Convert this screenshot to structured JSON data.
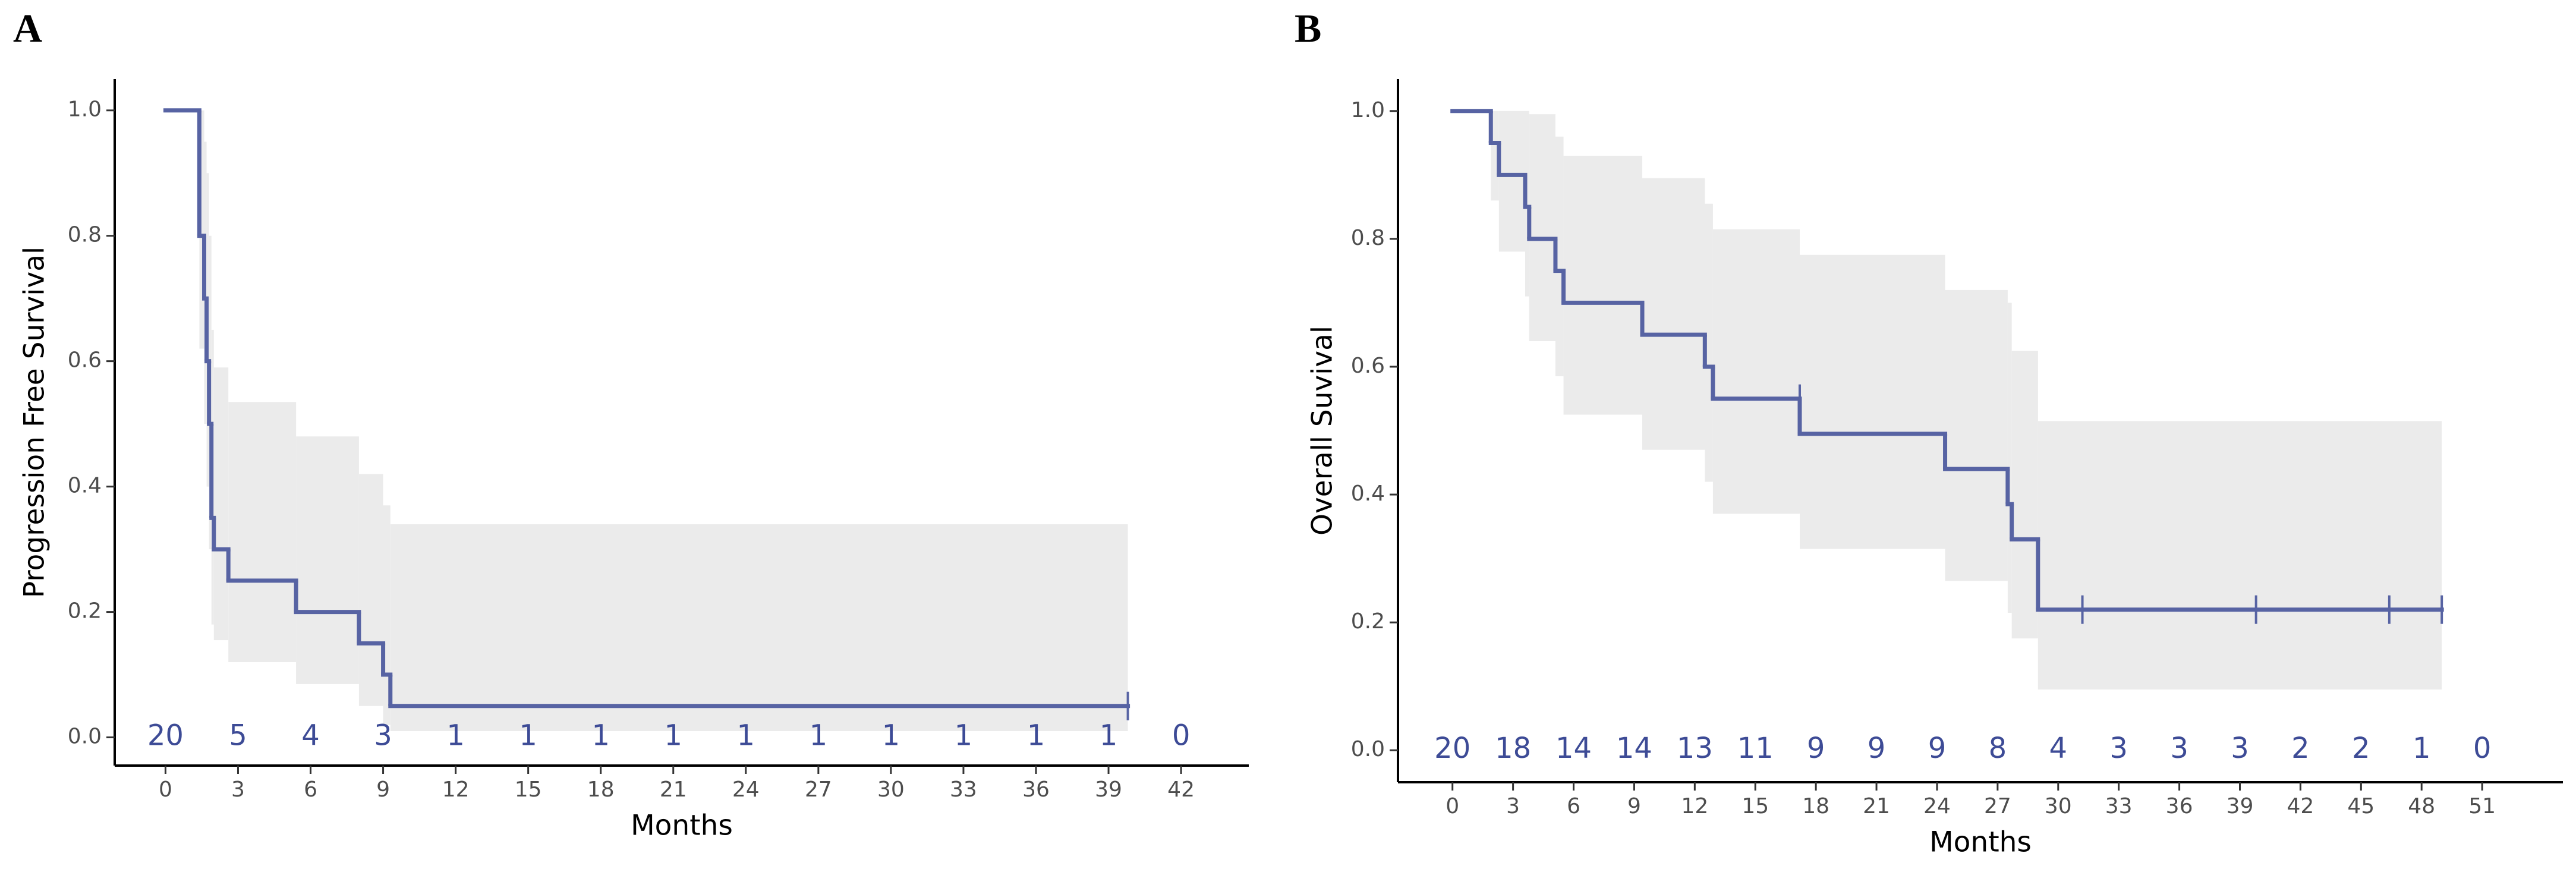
{
  "chart_data": [
    {
      "type": "step",
      "panel_label": "A",
      "x_label": "Months",
      "y_label": "Progression Free Survival",
      "line_color": "#5763a3",
      "band_color": "#ebebeb",
      "risk_color": "#3d4b96",
      "xlim": [
        -2.1,
        44.8
      ],
      "ylim": [
        -0.045,
        1.05
      ],
      "xticks": [
        0,
        3,
        6,
        9,
        12,
        15,
        18,
        21,
        24,
        27,
        30,
        33,
        36,
        39,
        42
      ],
      "yticks": [
        {
          "value": 0,
          "label": "0.0"
        },
        0.2,
        0.4,
        0.6,
        0.8,
        {
          "value": 1,
          "label": "1.0"
        }
      ],
      "x": [
        0,
        1.4,
        1.6,
        1.7,
        1.8,
        1.9,
        2.0,
        2.6,
        5.4,
        8.0,
        9.0,
        9.3,
        39.8
      ],
      "y": [
        1.0,
        0.8,
        0.7,
        0.6,
        0.5,
        0.35,
        0.3,
        0.25,
        0.2,
        0.15,
        0.1,
        0.05,
        0.05
      ],
      "upper": [
        1,
        1,
        0.95,
        0.9,
        0.8,
        0.65,
        0.59,
        0.535,
        0.48,
        0.42,
        0.37,
        0.34,
        0.34
      ],
      "lower": [
        1,
        0.62,
        0.5,
        0.4,
        0.3,
        0.18,
        0.155,
        0.12,
        0.085,
        0.05,
        0.02,
        0.01,
        0.01
      ],
      "censored": {
        "x": [
          39.8
        ],
        "y": [
          0.05
        ]
      },
      "at_risk": [
        20,
        5,
        4,
        3,
        1,
        1,
        1,
        1,
        1,
        1,
        1,
        1,
        1,
        1,
        0
      ]
    },
    {
      "type": "step",
      "panel_label": "B",
      "x_label": "Months",
      "y_label": "Overall Suvival",
      "line_color": "#5763a3",
      "band_color": "#ebebeb",
      "risk_color": "#3d4b96",
      "xlim": [
        -2.7,
        55.0
      ],
      "ylim": [
        -0.05,
        1.05
      ],
      "xticks": [
        0,
        3,
        6,
        9,
        12,
        15,
        18,
        21,
        24,
        27,
        30,
        33,
        36,
        39,
        42,
        45,
        48,
        51
      ],
      "yticks": [
        {
          "value": 0,
          "label": "0.0"
        },
        0.2,
        0.4,
        0.6,
        0.8,
        {
          "value": 1,
          "label": "1.0"
        }
      ],
      "x": [
        0,
        1.9,
        2.3,
        3.6,
        3.8,
        5.1,
        5.5,
        9.4,
        12.5,
        12.9,
        17.2,
        24.4,
        27.5,
        27.7,
        29.0,
        49.0
      ],
      "y": [
        1,
        0.95,
        0.9,
        0.85,
        0.8,
        0.75,
        0.7,
        0.65,
        0.6,
        0.55,
        0.495,
        0.44,
        0.385,
        0.33,
        0.22,
        0.22
      ],
      "upper": [
        1,
        1,
        1,
        1,
        0.995,
        0.96,
        0.93,
        0.895,
        0.855,
        0.815,
        0.775,
        0.72,
        0.7,
        0.625,
        0.515,
        0.515
      ],
      "lower": [
        1,
        0.86,
        0.78,
        0.71,
        0.64,
        0.585,
        0.525,
        0.47,
        0.42,
        0.37,
        0.315,
        0.265,
        0.215,
        0.175,
        0.095,
        0.095
      ],
      "censored": {
        "x": [
          17.2,
          31.2,
          39.8,
          46.4,
          49.0
        ],
        "y": [
          0.55,
          0.22,
          0.22,
          0.22,
          0.22
        ]
      },
      "at_risk": [
        20,
        18,
        14,
        14,
        13,
        11,
        9,
        9,
        9,
        8,
        4,
        3,
        3,
        3,
        2,
        2,
        1,
        0
      ]
    }
  ]
}
